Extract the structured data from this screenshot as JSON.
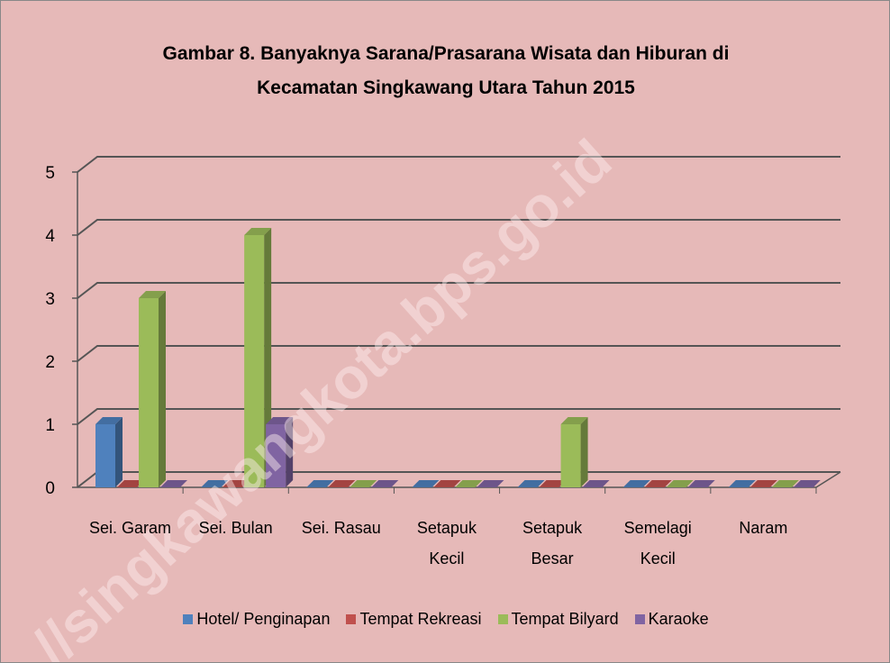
{
  "chart_data": {
    "type": "bar3d",
    "title": "Gambar 8. Banyaknya Sarana/Prasarana  Wisata dan Hiburan di\nKecamatan Singkawang Utara Tahun 2015",
    "categories": [
      "Sei. Garam",
      "Sei. Bulan",
      "Sei. Rasau",
      "Setapuk\nKecil",
      "Setapuk\nBesar",
      "Semelagi\nKecil",
      "Naram"
    ],
    "series": [
      {
        "name": "Hotel/ Penginapan",
        "color": "#4f81bd",
        "values": [
          1,
          0,
          0,
          0,
          0,
          0,
          0
        ]
      },
      {
        "name": "Tempat Rekreasi",
        "color": "#c0504d",
        "values": [
          0,
          0,
          0,
          0,
          0,
          0,
          0
        ]
      },
      {
        "name": "Tempat Bilyard",
        "color": "#9bbb59",
        "values": [
          3,
          4,
          0,
          0,
          1,
          0,
          0
        ]
      },
      {
        "name": "Karaoke",
        "color": "#8064a2",
        "values": [
          0,
          1,
          0,
          0,
          0,
          0,
          0
        ]
      }
    ],
    "ylim": [
      0,
      5
    ],
    "yticks": [
      0,
      1,
      2,
      3,
      4,
      5
    ],
    "grid": true,
    "legend": "bottom",
    "watermark": "//singkawangkota.bps.go.id"
  }
}
